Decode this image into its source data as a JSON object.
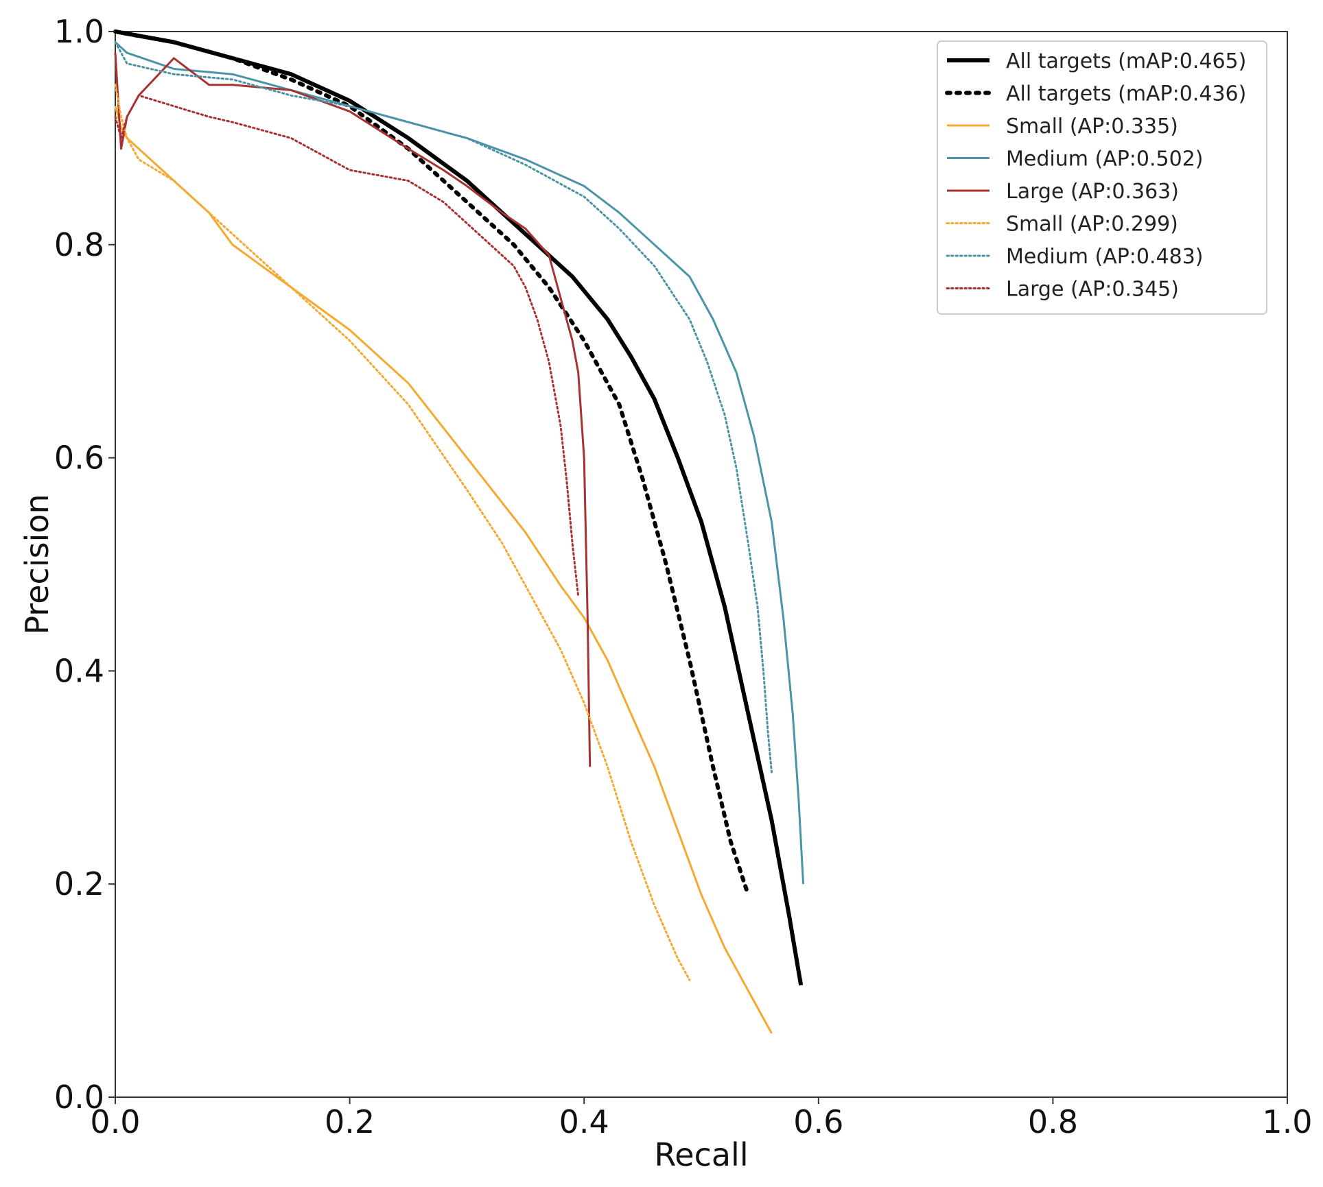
{
  "chart_data": {
    "type": "line",
    "title": "",
    "xlabel": "Recall",
    "ylabel": "Precision",
    "xlim": [
      0,
      1
    ],
    "ylim": [
      0,
      1
    ],
    "xticks": [
      "0.0",
      "0.2",
      "0.4",
      "0.6",
      "0.8",
      "1.0"
    ],
    "yticks": [
      "0.0",
      "0.2",
      "0.4",
      "0.6",
      "0.8",
      "1.0"
    ],
    "xtick_values": [
      0,
      0.2,
      0.4,
      0.6,
      0.8,
      1.0
    ],
    "ytick_values": [
      0,
      0.2,
      0.4,
      0.6,
      0.8,
      1.0
    ],
    "grid": false,
    "legend_position": "top-right",
    "series": [
      {
        "name": "All targets (mAP:0.465)",
        "color": "#000000",
        "style": "solid",
        "width": "thick",
        "x": [
          0.0,
          0.05,
          0.1,
          0.15,
          0.2,
          0.25,
          0.3,
          0.33,
          0.36,
          0.39,
          0.42,
          0.44,
          0.46,
          0.48,
          0.5,
          0.52,
          0.54,
          0.56,
          0.575,
          0.585
        ],
        "y": [
          1.0,
          0.99,
          0.975,
          0.96,
          0.935,
          0.9,
          0.86,
          0.83,
          0.8,
          0.77,
          0.73,
          0.695,
          0.655,
          0.6,
          0.54,
          0.46,
          0.36,
          0.26,
          0.17,
          0.105
        ]
      },
      {
        "name": "All targets (mAP:0.436)",
        "color": "#000000",
        "style": "dotted",
        "width": "thick",
        "x": [
          0.0,
          0.05,
          0.1,
          0.15,
          0.2,
          0.25,
          0.3,
          0.34,
          0.37,
          0.4,
          0.43,
          0.45,
          0.47,
          0.49,
          0.51,
          0.525,
          0.54
        ],
        "y": [
          1.0,
          0.99,
          0.975,
          0.955,
          0.93,
          0.89,
          0.84,
          0.8,
          0.76,
          0.71,
          0.65,
          0.58,
          0.5,
          0.41,
          0.31,
          0.24,
          0.19
        ]
      },
      {
        "name": "Small (AP:0.335)",
        "color": "#F5A930",
        "style": "solid",
        "width": "normal",
        "x": [
          0.0,
          0.005,
          0.01,
          0.02,
          0.04,
          0.06,
          0.08,
          0.1,
          0.15,
          0.2,
          0.25,
          0.3,
          0.35,
          0.38,
          0.4,
          0.42,
          0.44,
          0.46,
          0.48,
          0.5,
          0.52,
          0.54,
          0.56
        ],
        "y": [
          0.93,
          0.91,
          0.9,
          0.89,
          0.87,
          0.85,
          0.83,
          0.8,
          0.76,
          0.72,
          0.67,
          0.6,
          0.53,
          0.48,
          0.45,
          0.41,
          0.36,
          0.31,
          0.25,
          0.19,
          0.14,
          0.1,
          0.06
        ]
      },
      {
        "name": "Medium (AP:0.502)",
        "color": "#4A94A6",
        "style": "solid",
        "width": "normal",
        "x": [
          0.0,
          0.01,
          0.05,
          0.1,
          0.15,
          0.2,
          0.25,
          0.3,
          0.35,
          0.4,
          0.43,
          0.46,
          0.49,
          0.51,
          0.53,
          0.545,
          0.56,
          0.57,
          0.578,
          0.583,
          0.587
        ],
        "y": [
          0.99,
          0.98,
          0.965,
          0.96,
          0.945,
          0.93,
          0.915,
          0.9,
          0.88,
          0.855,
          0.83,
          0.8,
          0.77,
          0.73,
          0.68,
          0.62,
          0.54,
          0.45,
          0.36,
          0.28,
          0.2
        ]
      },
      {
        "name": "Large (AP:0.363)",
        "color": "#A83232",
        "style": "solid",
        "width": "normal",
        "x": [
          0.0,
          0.005,
          0.01,
          0.02,
          0.05,
          0.08,
          0.1,
          0.15,
          0.2,
          0.25,
          0.28,
          0.3,
          0.33,
          0.35,
          0.37,
          0.38,
          0.39,
          0.395,
          0.4,
          0.403,
          0.405
        ],
        "y": [
          0.98,
          0.89,
          0.92,
          0.94,
          0.975,
          0.95,
          0.95,
          0.945,
          0.925,
          0.89,
          0.87,
          0.855,
          0.83,
          0.815,
          0.79,
          0.75,
          0.71,
          0.68,
          0.6,
          0.45,
          0.31
        ]
      },
      {
        "name": "Small (AP:0.299)",
        "color": "#F5A930",
        "style": "dotted",
        "width": "normal",
        "x": [
          0.0,
          0.005,
          0.01,
          0.02,
          0.05,
          0.08,
          0.1,
          0.15,
          0.2,
          0.25,
          0.3,
          0.33,
          0.36,
          0.38,
          0.4,
          0.42,
          0.44,
          0.46,
          0.48,
          0.49
        ],
        "y": [
          0.95,
          0.92,
          0.9,
          0.88,
          0.86,
          0.83,
          0.81,
          0.76,
          0.71,
          0.65,
          0.57,
          0.52,
          0.46,
          0.42,
          0.37,
          0.31,
          0.24,
          0.18,
          0.13,
          0.11
        ]
      },
      {
        "name": "Medium (AP:0.483)",
        "color": "#4A94A6",
        "style": "dotted",
        "width": "normal",
        "x": [
          0.0,
          0.01,
          0.05,
          0.1,
          0.15,
          0.2,
          0.25,
          0.3,
          0.35,
          0.4,
          0.43,
          0.46,
          0.49,
          0.505,
          0.52,
          0.53,
          0.54,
          0.548,
          0.553,
          0.557,
          0.56
        ],
        "y": [
          0.99,
          0.97,
          0.96,
          0.955,
          0.94,
          0.93,
          0.915,
          0.9,
          0.875,
          0.845,
          0.815,
          0.78,
          0.73,
          0.69,
          0.64,
          0.59,
          0.52,
          0.46,
          0.4,
          0.34,
          0.305
        ]
      },
      {
        "name": "Large (AP:0.345)",
        "color": "#A83232",
        "style": "dotted",
        "width": "normal",
        "x": [
          0.0,
          0.005,
          0.01,
          0.02,
          0.05,
          0.08,
          0.1,
          0.15,
          0.2,
          0.25,
          0.28,
          0.3,
          0.32,
          0.34,
          0.35,
          0.36,
          0.37,
          0.38,
          0.385,
          0.39,
          0.395
        ],
        "y": [
          0.92,
          0.9,
          0.92,
          0.94,
          0.93,
          0.92,
          0.915,
          0.9,
          0.87,
          0.86,
          0.84,
          0.82,
          0.8,
          0.78,
          0.76,
          0.73,
          0.69,
          0.63,
          0.58,
          0.52,
          0.47
        ]
      }
    ]
  }
}
